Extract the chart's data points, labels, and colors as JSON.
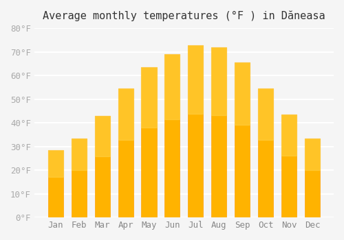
{
  "title": "Average monthly temperatures (°F ) in Dăneasa",
  "months": [
    "Jan",
    "Feb",
    "Mar",
    "Apr",
    "May",
    "Jun",
    "Jul",
    "Aug",
    "Sep",
    "Oct",
    "Nov",
    "Dec"
  ],
  "values": [
    28.5,
    33.5,
    43.0,
    54.5,
    63.5,
    69.0,
    73.0,
    72.0,
    65.5,
    54.5,
    43.5,
    33.5
  ],
  "bar_color": "#FFB300",
  "bar_edge_color": "#FFA000",
  "background_color": "#F5F5F5",
  "grid_color": "#FFFFFF",
  "tick_color": "#AAAAAA",
  "title_fontsize": 11,
  "tick_fontsize": 9,
  "ylim": [
    0,
    80
  ],
  "yticks": [
    0,
    10,
    20,
    30,
    40,
    50,
    60,
    70,
    80
  ]
}
